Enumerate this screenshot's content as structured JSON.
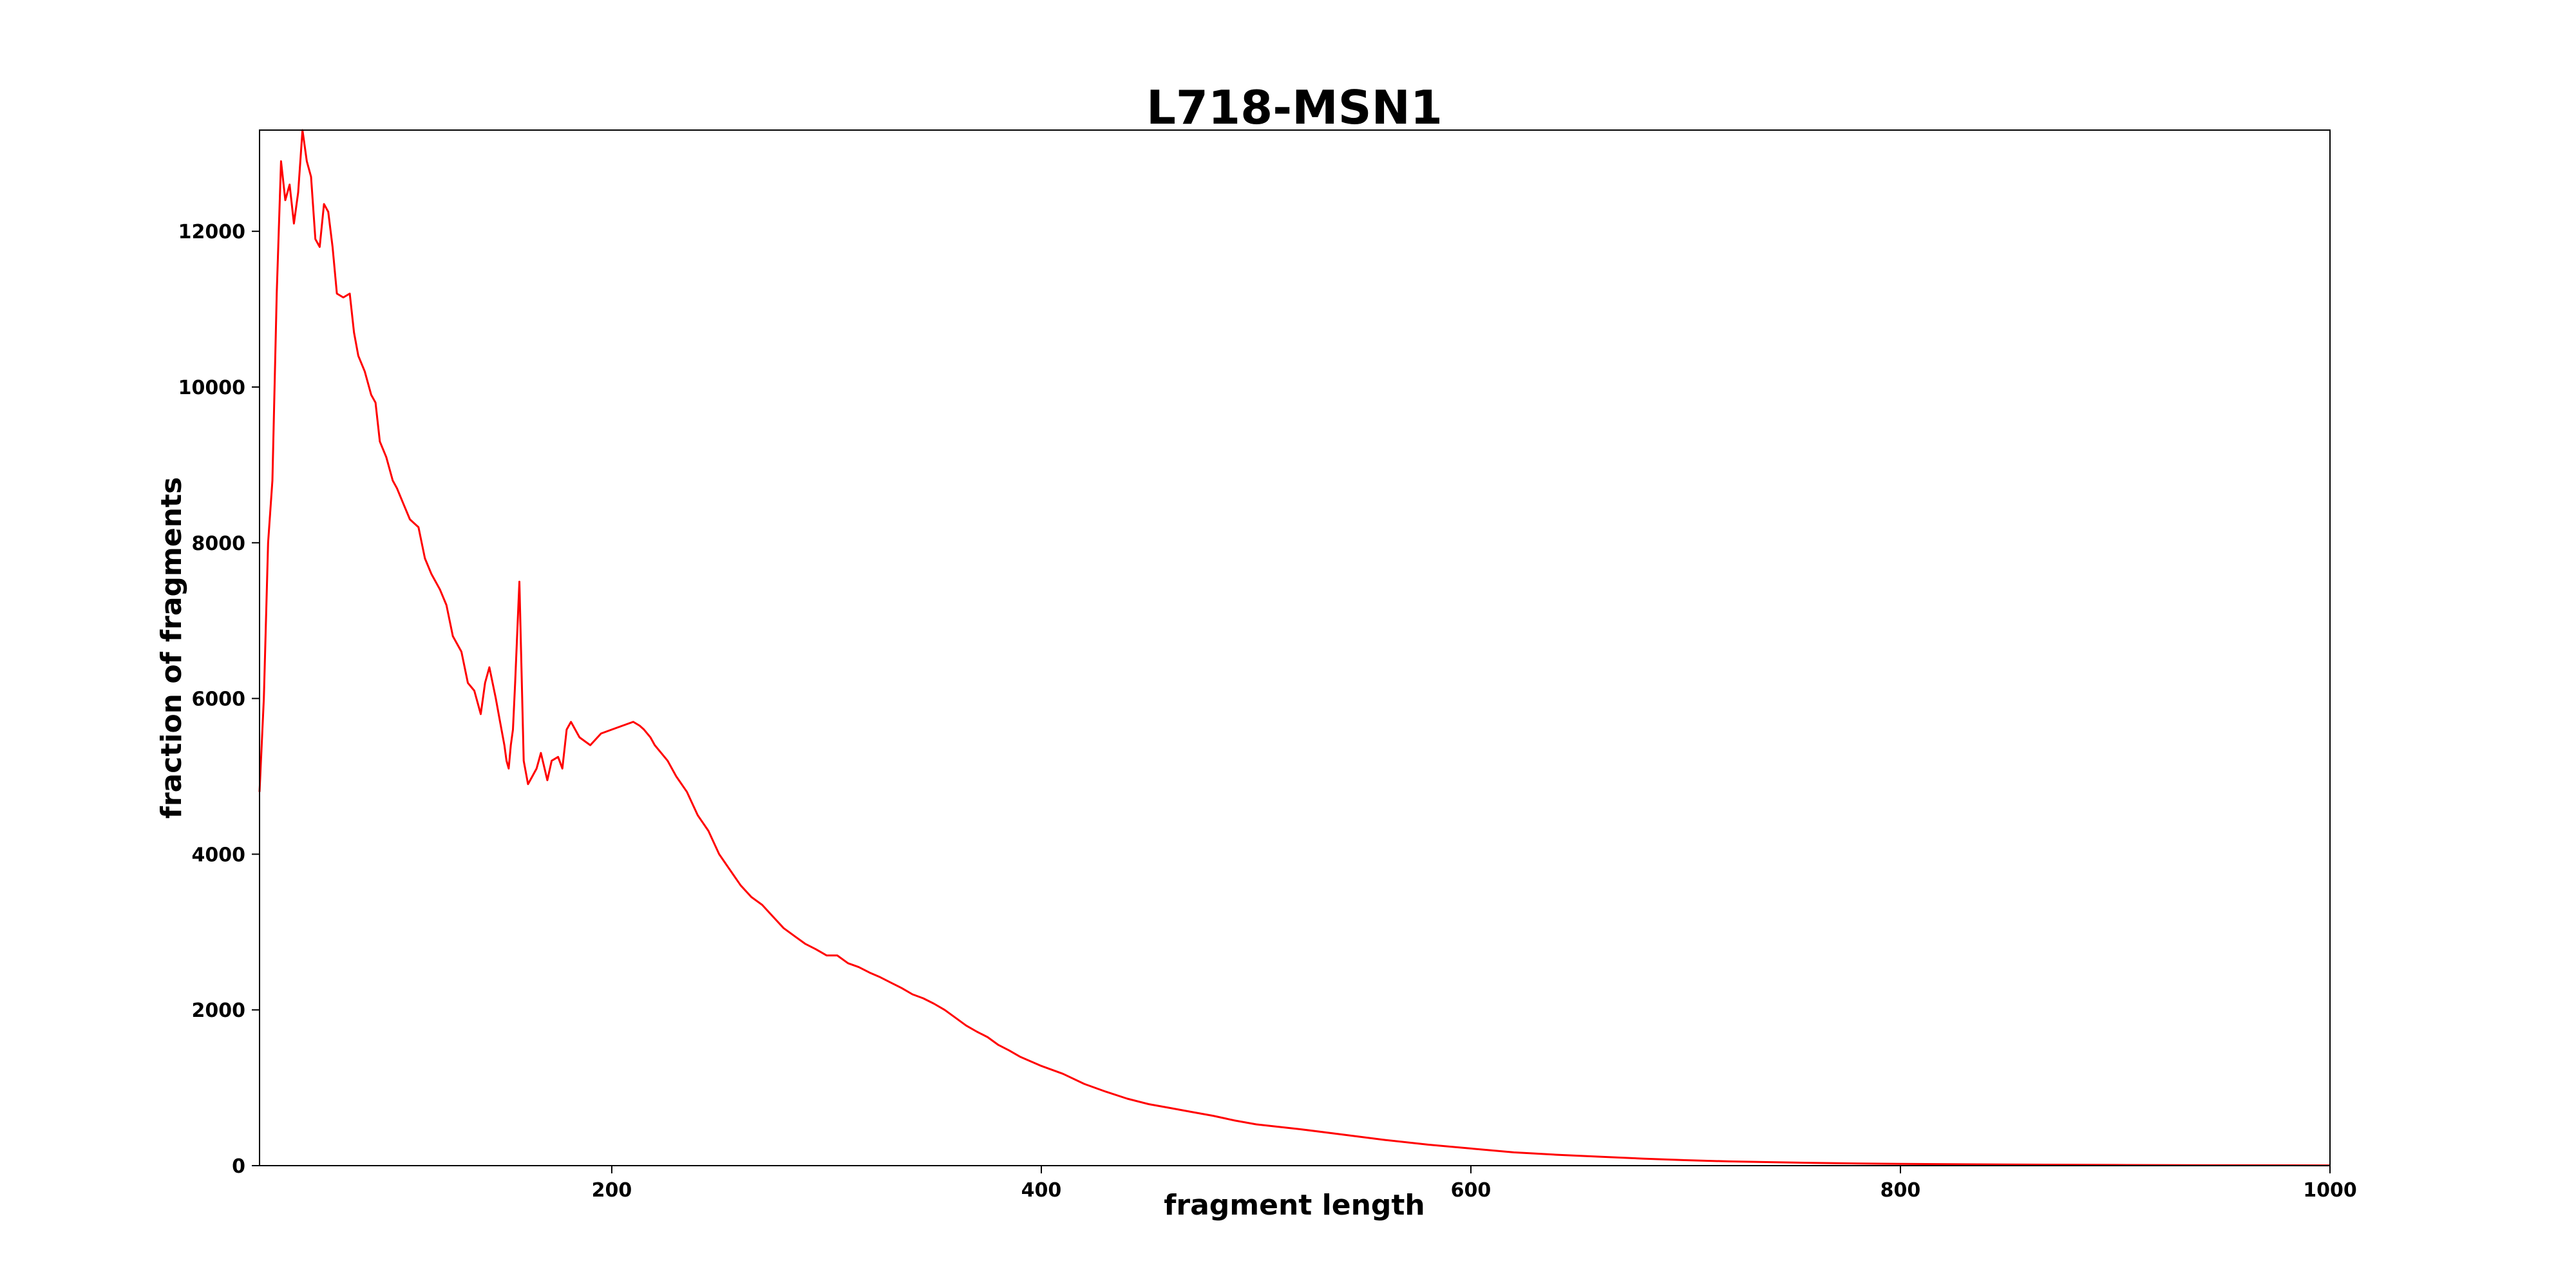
{
  "chart_data": {
    "type": "line",
    "title": "L718-MSN1",
    "xlabel": "fragment length",
    "ylabel": "fraction of fragments",
    "xlim": [
      36,
      1000
    ],
    "ylim": [
      0,
      13300
    ],
    "xticks": [
      200,
      400,
      600,
      800,
      1000
    ],
    "yticks": [
      0,
      2000,
      4000,
      6000,
      8000,
      10000,
      12000
    ],
    "grid": false,
    "legend": "none",
    "line_color": "#ff0000",
    "series": [
      {
        "x": [
          36,
          38,
          40,
          42,
          44,
          46,
          48,
          50,
          52,
          54,
          56,
          58,
          60,
          62,
          64,
          66,
          68,
          70,
          72,
          75,
          78,
          80,
          82,
          85,
          88,
          90,
          92,
          95,
          98,
          100,
          103,
          106,
          110,
          113,
          116,
          120,
          123,
          126,
          130,
          133,
          136,
          139,
          141,
          143,
          146,
          148,
          150,
          151,
          152,
          153,
          154,
          155,
          157,
          159,
          161,
          163,
          165,
          167,
          170,
          172,
          175,
          177,
          179,
          181,
          185,
          190,
          195,
          200,
          205,
          210,
          213,
          215,
          218,
          220,
          223,
          226,
          230,
          235,
          240,
          245,
          250,
          255,
          260,
          265,
          270,
          275,
          280,
          285,
          290,
          295,
          300,
          305,
          310,
          315,
          320,
          325,
          330,
          335,
          340,
          345,
          350,
          355,
          360,
          365,
          370,
          375,
          380,
          385,
          390,
          395,
          400,
          410,
          420,
          430,
          440,
          450,
          460,
          470,
          480,
          490,
          500,
          520,
          540,
          560,
          580,
          600,
          620,
          640,
          660,
          680,
          700,
          720,
          740,
          760,
          780,
          800,
          850,
          900,
          950,
          1000
        ],
        "y": [
          4800,
          6000,
          8000,
          8800,
          11200,
          12900,
          12400,
          12600,
          12100,
          12500,
          13300,
          12900,
          12700,
          11900,
          11800,
          12350,
          12250,
          11800,
          11200,
          11150,
          11200,
          10700,
          10400,
          10200,
          9900,
          9800,
          9300,
          9100,
          8800,
          8700,
          8500,
          8300,
          8200,
          7800,
          7600,
          7400,
          7200,
          6800,
          6600,
          6200,
          6100,
          5800,
          6200,
          6400,
          6000,
          5700,
          5400,
          5200,
          5100,
          5400,
          5600,
          6200,
          7500,
          5200,
          4900,
          5000,
          5100,
          5300,
          4950,
          5200,
          5250,
          5100,
          5600,
          5700,
          5500,
          5400,
          5550,
          5600,
          5650,
          5700,
          5650,
          5600,
          5500,
          5400,
          5300,
          5200,
          5000,
          4800,
          4500,
          4300,
          4000,
          3800,
          3600,
          3450,
          3350,
          3200,
          3050,
          2950,
          2850,
          2780,
          2700,
          2700,
          2600,
          2550,
          2480,
          2420,
          2350,
          2280,
          2200,
          2150,
          2080,
          2000,
          1900,
          1800,
          1720,
          1650,
          1550,
          1480,
          1400,
          1340,
          1280,
          1180,
          1050,
          950,
          860,
          790,
          740,
          690,
          640,
          580,
          530,
          470,
          400,
          330,
          270,
          220,
          170,
          140,
          115,
          90,
          70,
          55,
          45,
          35,
          28,
          22,
          14,
          9,
          5,
          3
        ]
      }
    ]
  }
}
